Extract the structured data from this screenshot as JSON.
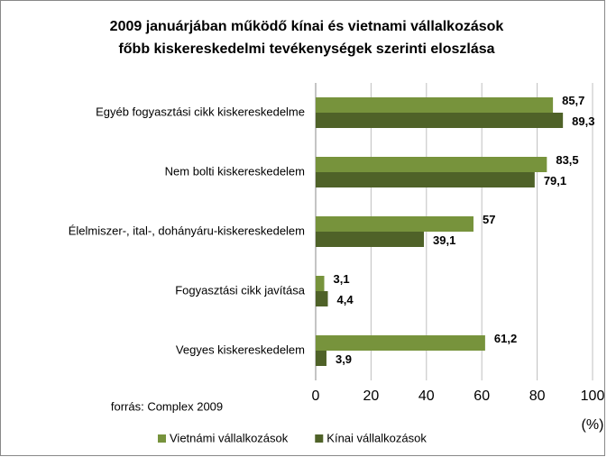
{
  "chart_data": {
    "type": "barh",
    "title": [
      "2009 januárjában működő kínai és vietnami vállalkozások",
      "főbb kiskereskedelmi tevékenységek szerinti eloszlása"
    ],
    "categories": [
      "Egyéb fogyasztási cikk kiskereskedelme",
      "Nem bolti kiskereskedelem",
      "Élelmiszer-, ital-, dohányáru-kiskereskedelem",
      "Fogyasztási cikk javítása",
      "Vegyes kiskereskedelem"
    ],
    "series": [
      {
        "name": "Vietnámi vállalkozások",
        "color": "#77933c",
        "values": [
          85.7,
          83.5,
          57,
          3.1,
          61.2
        ],
        "value_labels": [
          "85,7",
          "83,5",
          "57",
          "3,1",
          "61,2"
        ]
      },
      {
        "name": "Kínai vállalkozások",
        "color": "#4f6228",
        "values": [
          89.3,
          79.1,
          39.1,
          4.4,
          3.9
        ],
        "value_labels": [
          "89,3",
          "79,1",
          "39,1",
          "4,4",
          "3,9"
        ]
      }
    ],
    "xlim": [
      0,
      100
    ],
    "xticks": [
      0,
      20,
      40,
      60,
      80,
      100
    ],
    "xlabel": "(%)",
    "grid": true,
    "legend": "bottom",
    "source": "forrás: Complex 2009"
  }
}
